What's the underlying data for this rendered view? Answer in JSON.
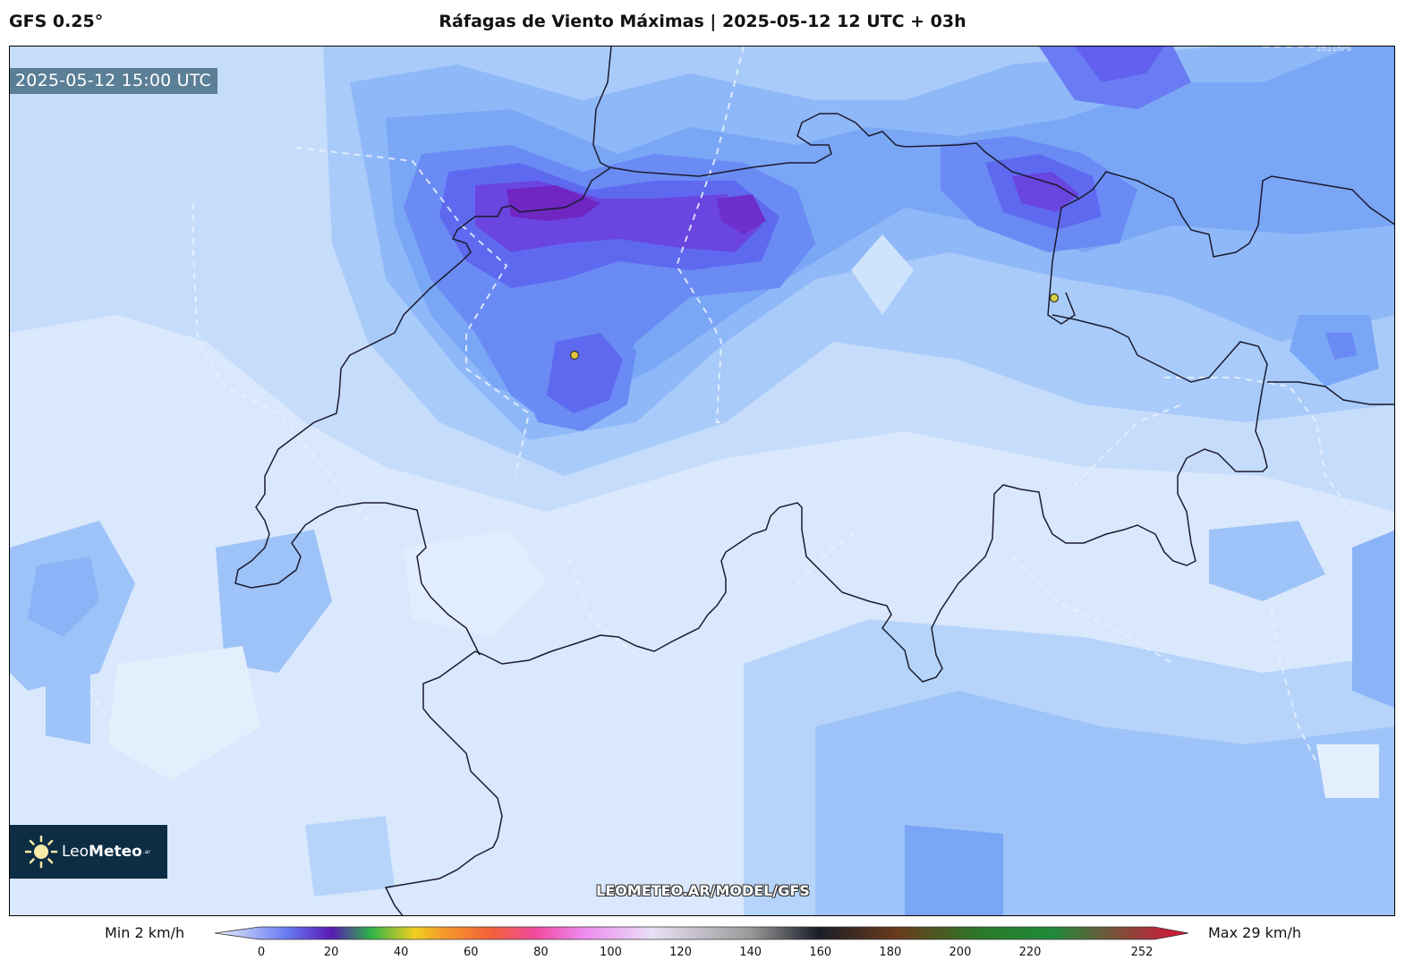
{
  "header": {
    "model": "GFS 0.25°",
    "title": "Ráfagas de Viento Máximas | 2025-05-12 12 UTC + 03h"
  },
  "map": {
    "valid_time": "2025-05-12 15:00 UTC",
    "watermark": "LEOMETEO.AR/MODEL/GFS",
    "isobar_label": "1011hPa",
    "markers": [
      "city-marker-west",
      "city-marker-east"
    ]
  },
  "logo": {
    "name_part1": "Leo",
    "name_part2": "Meteo",
    "suffix": ".ar"
  },
  "legend": {
    "min_label": "Min 2 km/h",
    "max_label": "Max 29 km/h",
    "ticks": [
      "0",
      "20",
      "40",
      "60",
      "80",
      "100",
      "120",
      "140",
      "160",
      "180",
      "200",
      "220",
      "252"
    ],
    "colors": {
      "c0": "#e8f1fd",
      "c20": "#6678f2",
      "c30": "#5a1ab3",
      "c40": "#2fb24a",
      "c55": "#f0d020",
      "c60": "#f59a2a",
      "c75": "#f2603a",
      "c85": "#f04aa0",
      "c100": "#ee8cf0",
      "c120": "#e8e0f4",
      "c140": "#9a9a9a",
      "c160": "#1a1e28",
      "c180": "#6a3a1c",
      "c200": "#2a7a2a",
      "c220": "#1f8a3a",
      "c252": "#e0103a"
    }
  }
}
